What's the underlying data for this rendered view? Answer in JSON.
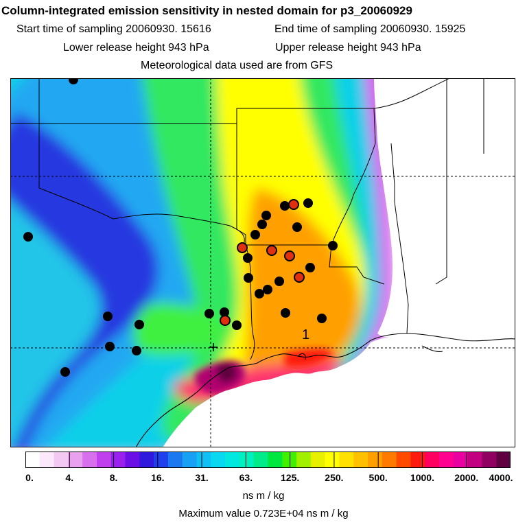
{
  "header": {
    "title": "Column-integrated emission sensitivity in nested domain for p3_20060929",
    "start_time": "Start time of sampling 20060930. 15616",
    "end_time": "End time of sampling 20060930. 15925",
    "lower_height": "Lower release height  943 hPa",
    "upper_height": "Upper release height  943 hPa",
    "met_data": "Meteorological data used are from GFS"
  },
  "map": {
    "release_label": "1",
    "colors": {
      "background": "#ffffff",
      "border": "#000000",
      "marker_black": "#000000",
      "marker_red": "#e03010"
    }
  },
  "colorbar": {
    "ticks": [
      "0.",
      "4.",
      "8.",
      "16.",
      "31.",
      "63.",
      "125.",
      "250.",
      "500.",
      "1000.",
      "2000.",
      "4000."
    ],
    "colors": [
      "#ffffff",
      "#fbe8fb",
      "#f3c8f3",
      "#e8a0ef",
      "#d870ee",
      "#c040ee",
      "#9a20ee",
      "#6a10e6",
      "#3018dc",
      "#2040ee",
      "#1a78f0",
      "#18a0f2",
      "#10c0f4",
      "#08d8f0",
      "#00e8e0",
      "#00f0c0",
      "#00ec88",
      "#00e840",
      "#40f000",
      "#a0f000",
      "#e8f000",
      "#ffff00",
      "#ffe000",
      "#ffc000",
      "#ffa000",
      "#ff7a00",
      "#ff4a00",
      "#ff1a10",
      "#ff0060",
      "#ff0090",
      "#e800a0",
      "#c00080",
      "#900060",
      "#600040"
    ],
    "units": "ns m / kg",
    "max_value": "Maximum value  0.723E+04 ns m / kg"
  }
}
